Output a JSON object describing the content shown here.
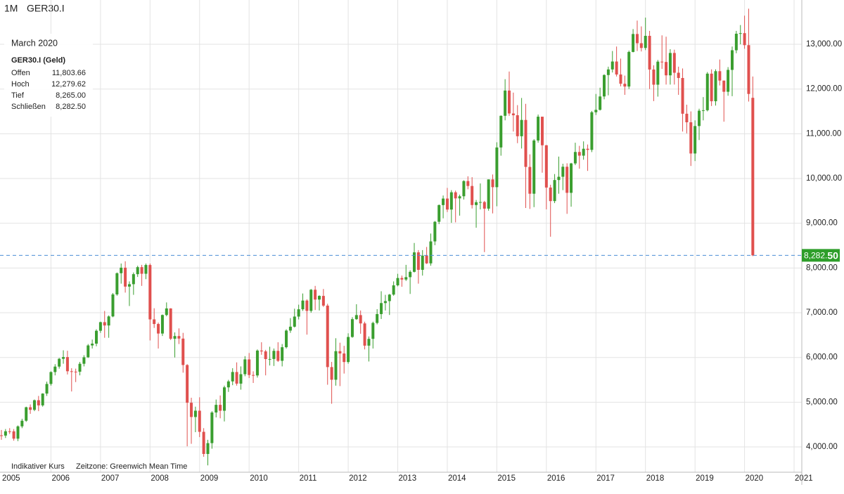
{
  "chart_data": {
    "type": "candlestick",
    "timeframe": "1M",
    "symbol": "GER30.I",
    "info": {
      "period": "March 2020",
      "instrument": "GER30.I (Geld)",
      "fields": [
        {
          "label": "Offen",
          "value": "11,803.66"
        },
        {
          "label": "Hoch",
          "value": "12,279.62"
        },
        {
          "label": "Tief",
          "value": "8,265.00"
        },
        {
          "label": "Schließen",
          "value": "8,282.50"
        }
      ]
    },
    "footer": [
      "Indikativer Kurs",
      "Zeitzone: Greenwich Mean Time"
    ],
    "up_color": "#3a9e2f",
    "down_color": "#e0504e",
    "categories": [
      "2005",
      null,
      null,
      null,
      null,
      null,
      null,
      null,
      null,
      null,
      null,
      null,
      "2006",
      null,
      null,
      null,
      null,
      null,
      null,
      null,
      null,
      null,
      null,
      null,
      "2007",
      null,
      null,
      null,
      null,
      null,
      null,
      null,
      null,
      null,
      null,
      null,
      "2008",
      null,
      null,
      null,
      null,
      null,
      null,
      null,
      null,
      null,
      null,
      null,
      "2009",
      null,
      null,
      null,
      null,
      null,
      null,
      null,
      null,
      null,
      null,
      null,
      "2010",
      null,
      null,
      null,
      null,
      null,
      null,
      null,
      null,
      null,
      null,
      null,
      "2011",
      null,
      null,
      null,
      null,
      null,
      null,
      null,
      null,
      null,
      null,
      null,
      "2012",
      null,
      null,
      null,
      null,
      null,
      null,
      null,
      null,
      null,
      null,
      null,
      "2013",
      null,
      null,
      null,
      null,
      null,
      null,
      null,
      null,
      null,
      null,
      null,
      "2014",
      null,
      null,
      null,
      null,
      null,
      null,
      null,
      null,
      null,
      null,
      null,
      "2015",
      null,
      null,
      null,
      null,
      null,
      null,
      null,
      null,
      null,
      null,
      null,
      "2016",
      null,
      null,
      null,
      null,
      null,
      null,
      null,
      null,
      null,
      null,
      null,
      "2017",
      null,
      null,
      null,
      null,
      null,
      null,
      null,
      null,
      null,
      null,
      null,
      "2018",
      null,
      null,
      null,
      null,
      null,
      null,
      null,
      null,
      null,
      null,
      null,
      "2019",
      null,
      null,
      null,
      null,
      null,
      null,
      null,
      null,
      null,
      null,
      null,
      "2020",
      null,
      null,
      null,
      null,
      null,
      null,
      null,
      null,
      null,
      null,
      null,
      "2021"
    ],
    "open": [
      4260,
      4254,
      4350,
      4349,
      4185,
      4460,
      4586,
      4887,
      4829,
      5044,
      4929,
      5193,
      5408,
      5674,
      5796,
      5970,
      6009,
      5692,
      5683,
      5682,
      5859,
      6004,
      6269,
      6309,
      6597,
      6789,
      6715,
      6917,
      7409,
      7883,
      8007,
      7584,
      7638,
      7862,
      8019,
      7871,
      8067,
      6851,
      6748,
      6535,
      6949,
      7096,
      6418,
      6479,
      6422,
      5831,
      4988,
      4669,
      4810,
      4338,
      3843,
      4085,
      4770,
      4941,
      4809,
      5332,
      5465,
      5675,
      5415,
      5626,
      5957,
      5608,
      5598,
      6154,
      6136,
      5964,
      5966,
      6148,
      5925,
      6229,
      6601,
      6688,
      6914,
      7077,
      7272,
      7041,
      7514,
      7294,
      7376,
      7159,
      5785,
      5502,
      6141,
      6089,
      5898,
      6458,
      6856,
      6947,
      6761,
      6264,
      6416,
      6772,
      6970,
      7216,
      7260,
      7405,
      7612,
      7776,
      7742,
      7795,
      7914,
      8349,
      7959,
      8276,
      8103,
      8594,
      9033,
      9406,
      9552,
      9306,
      9692,
      9556,
      9603,
      9943,
      9833,
      9407,
      9470,
      9474,
      9327,
      9980,
      9806,
      10694,
      11402,
      11966,
      11454,
      11414,
      10945,
      11309,
      10259,
      9660,
      10850,
      11382,
      10743,
      9798,
      9495,
      9966,
      10039,
      10263,
      9680,
      10337,
      10593,
      10511,
      10665,
      10640,
      11481,
      11535,
      11834,
      12313,
      12438,
      12615,
      12325,
      12118,
      12056,
      12829,
      13230,
      13024,
      12918,
      13189,
      12436,
      12097,
      12612,
      12605,
      12306,
      12806,
      12364,
      12247,
      11448,
      11257,
      10559,
      11173,
      11516,
      11526,
      12344,
      11727,
      12399,
      12189,
      11939,
      12428,
      12867,
      13236,
      13249,
      12981,
      11803.66,
      null,
      null,
      null,
      null,
      null,
      null,
      null,
      null,
      null,
      null
    ],
    "high": [
      4380,
      4400,
      4420,
      4400,
      4480,
      4630,
      4900,
      4950,
      5060,
      5140,
      5200,
      5460,
      5690,
      5850,
      5990,
      6160,
      6150,
      5760,
      5750,
      5900,
      6050,
      6300,
      6400,
      6630,
      6800,
      7040,
      6940,
      7440,
      7900,
      8100,
      8150,
      7700,
      7900,
      8050,
      8070,
      8100,
      8100,
      7100,
      6780,
      6960,
      7230,
      7100,
      6560,
      6650,
      6550,
      5850,
      5100,
      4900,
      5110,
      4420,
      4160,
      4800,
      5060,
      5150,
      5370,
      5500,
      5760,
      5890,
      5800,
      6030,
      6100,
      5690,
      6180,
      6340,
      6170,
      6240,
      6200,
      6340,
      6300,
      6630,
      6880,
      7090,
      7180,
      7430,
      7300,
      7530,
      7600,
      7390,
      7530,
      7200,
      5900,
      6430,
      6330,
      6260,
      6540,
      6900,
      7190,
      7050,
      6800,
      6470,
      6800,
      7080,
      7480,
      7400,
      7420,
      7700,
      7870,
      7830,
      8070,
      7950,
      8560,
      8400,
      8400,
      8470,
      8770,
      9050,
      9420,
      9620,
      9790,
      9740,
      9730,
      9640,
      9960,
      10050,
      10030,
      9520,
      9890,
      9500,
      9980,
      10090,
      10810,
      11410,
      12220,
      12391,
      11920,
      11640,
      11800,
      11670,
      10540,
      10880,
      11430,
      11380,
      10750,
      9860,
      10100,
      10490,
      10330,
      10340,
      10350,
      10800,
      10730,
      10830,
      10760,
      11510,
      11890,
      12030,
      12330,
      12500,
      12850,
      12950,
      12680,
      12300,
      12860,
      13340,
      13530,
      13400,
      13596,
      13300,
      12530,
      12650,
      13200,
      13170,
      12890,
      12880,
      12500,
      12460,
      11650,
      11500,
      11300,
      11560,
      11820,
      12380,
      12440,
      12440,
      12660,
      12190,
      12490,
      12950,
      13300,
      13430,
      13640,
      13795,
      12279.62,
      null,
      null,
      null,
      null,
      null,
      null,
      null,
      null,
      null,
      null
    ],
    "low": [
      4160,
      4200,
      4290,
      4140,
      4130,
      4420,
      4560,
      4740,
      4800,
      4800,
      4900,
      5140,
      5370,
      5600,
      5750,
      5860,
      5620,
      5240,
      5450,
      5600,
      5800,
      5990,
      6200,
      6250,
      6550,
      6440,
      6440,
      6900,
      7380,
      7650,
      7450,
      7150,
      7400,
      7800,
      7600,
      7750,
      6380,
      6660,
      6200,
      6480,
      6920,
      6390,
      6000,
      6300,
      5660,
      4014,
      4070,
      4330,
      4220,
      3780,
      3589,
      3960,
      4660,
      4640,
      4570,
      5230,
      5380,
      5370,
      5280,
      5580,
      5540,
      5430,
      5550,
      6060,
      5600,
      5820,
      5810,
      5900,
      5800,
      6200,
      6550,
      6670,
      6850,
      7040,
      6510,
      7000,
      7060,
      7050,
      7130,
      5390,
      4965,
      5370,
      5360,
      5640,
      5860,
      6440,
      6840,
      6530,
      6180,
      5910,
      6200,
      6740,
      6860,
      7050,
      6950,
      7380,
      7590,
      7580,
      7710,
      7420,
      7900,
      7650,
      7830,
      8090,
      8050,
      8510,
      8980,
      9110,
      9250,
      9010,
      9020,
      9170,
      9530,
      9760,
      9330,
      8900,
      9310,
      8355,
      9280,
      9220,
      9380,
      10510,
      11300,
      11400,
      11050,
      10790,
      10670,
      9340,
      9320,
      9360,
      10800,
      10130,
      9310,
      8699,
      9450,
      9660,
      9740,
      9210,
      9370,
      10300,
      10220,
      10420,
      10170,
      10590,
      11420,
      11520,
      11770,
      11860,
      12370,
      12280,
      12060,
      11870,
      12000,
      12820,
      12850,
      12840,
      12870,
      12000,
      11730,
      11830,
      12450,
      12100,
      12100,
      12100,
      11870,
      11050,
      11010,
      10280,
      10390,
      10860,
      11300,
      11500,
      11620,
      11630,
      12080,
      11270,
      11850,
      11840,
      12800,
      13000,
      12900,
      11720,
      8265,
      null,
      null,
      null,
      null,
      null,
      null,
      null,
      null,
      null,
      null
    ],
    "close": [
      4254,
      4350,
      4349,
      4185,
      4460,
      4586,
      4887,
      4829,
      5044,
      4929,
      5193,
      5408,
      5674,
      5796,
      5970,
      6009,
      5692,
      5683,
      5682,
      5859,
      6004,
      6269,
      6309,
      6597,
      6789,
      6715,
      6917,
      7409,
      7883,
      8007,
      7584,
      7638,
      7862,
      8019,
      7871,
      8067,
      6851,
      6748,
      6535,
      6949,
      7096,
      6418,
      6479,
      6422,
      5831,
      4988,
      4669,
      4810,
      4338,
      3843,
      4085,
      4770,
      4941,
      4809,
      5332,
      5465,
      5675,
      5415,
      5626,
      5957,
      5608,
      5598,
      6154,
      6136,
      5964,
      5966,
      6148,
      5925,
      6229,
      6601,
      6688,
      6914,
      7077,
      7272,
      7041,
      7514,
      7294,
      7376,
      7159,
      5785,
      5502,
      6141,
      6089,
      5898,
      6458,
      6856,
      6947,
      6761,
      6264,
      6416,
      6772,
      6970,
      7216,
      7260,
      7405,
      7612,
      7776,
      7742,
      7795,
      7914,
      8349,
      7959,
      8276,
      8103,
      8594,
      9033,
      9406,
      9552,
      9306,
      9692,
      9556,
      9603,
      9943,
      9833,
      9407,
      9470,
      9474,
      9327,
      9980,
      9806,
      10694,
      11402,
      11966,
      11454,
      11414,
      10945,
      11309,
      10259,
      9660,
      10850,
      11382,
      10743,
      9798,
      9495,
      9966,
      10039,
      10263,
      9680,
      10337,
      10593,
      10511,
      10665,
      10640,
      11481,
      11535,
      11834,
      12313,
      12438,
      12615,
      12325,
      12118,
      12056,
      12829,
      13230,
      13024,
      12918,
      13189,
      12436,
      12097,
      12612,
      12605,
      12306,
      12806,
      12364,
      12247,
      11448,
      11257,
      10559,
      11173,
      11516,
      11526,
      12344,
      11727,
      12399,
      12189,
      11939,
      12428,
      12867,
      13236,
      13249,
      12981,
      11890,
      8282.5,
      null,
      null,
      null,
      null,
      null,
      null,
      null,
      null,
      null,
      null
    ],
    "ylim": [
      3435,
      13990
    ],
    "yticks": [
      {
        "value": 4000,
        "label": "4,000.00"
      },
      {
        "value": 5000,
        "label": "5,000.00"
      },
      {
        "value": 6000,
        "label": "6,000.00"
      },
      {
        "value": 7000,
        "label": "7,000.00"
      },
      {
        "value": 8000,
        "label": "8,000.00"
      },
      {
        "value": 9000,
        "label": "9,000.00"
      },
      {
        "value": 10000,
        "label": "10,000.00"
      },
      {
        "value": 11000,
        "label": "11,000.00"
      },
      {
        "value": 12000,
        "label": "12,000.00"
      },
      {
        "value": 13000,
        "label": "13,000.00"
      }
    ],
    "price_line": {
      "value": 8282.5,
      "label": "8,282.50",
      "color": "#2e9e2a"
    },
    "grid": true
  }
}
